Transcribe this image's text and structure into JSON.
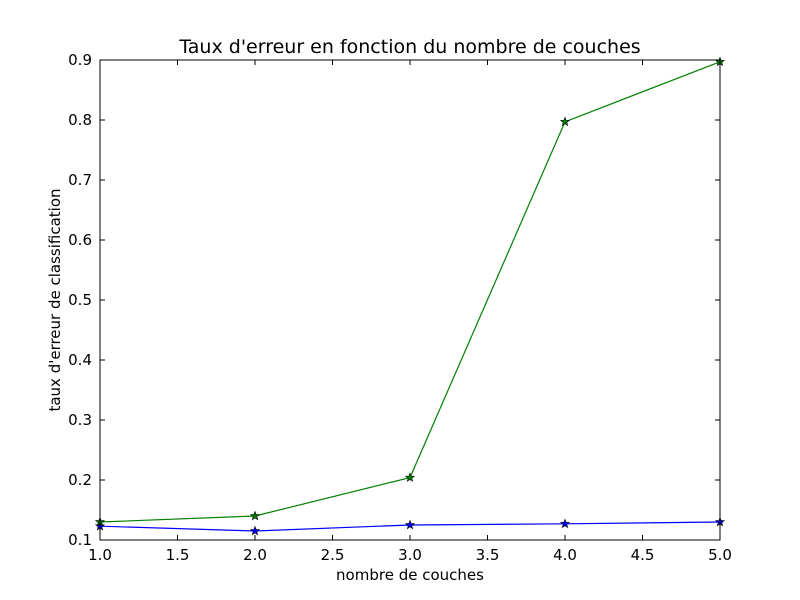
{
  "chart_data": {
    "type": "line",
    "title": "Taux d'erreur en fonction du nombre de couches",
    "xlabel": "nombre de couches",
    "ylabel": "taux d'erreur de classification",
    "xlim": [
      1.0,
      5.0
    ],
    "ylim": [
      0.1,
      0.9
    ],
    "x_ticks": [
      "1.0",
      "1.5",
      "2.0",
      "2.5",
      "3.0",
      "3.5",
      "4.0",
      "4.5",
      "5.0"
    ],
    "y_ticks": [
      "0.1",
      "0.2",
      "0.3",
      "0.4",
      "0.5",
      "0.6",
      "0.7",
      "0.8",
      "0.9"
    ],
    "grid": false,
    "marker": "star",
    "x": [
      1,
      2,
      3,
      4,
      5
    ],
    "series": [
      {
        "color": "#0000ff",
        "values": [
          0.123,
          0.115,
          0.125,
          0.127,
          0.13
        ]
      },
      {
        "color": "#008000",
        "values": [
          0.13,
          0.14,
          0.204,
          0.797,
          0.897
        ]
      }
    ]
  }
}
